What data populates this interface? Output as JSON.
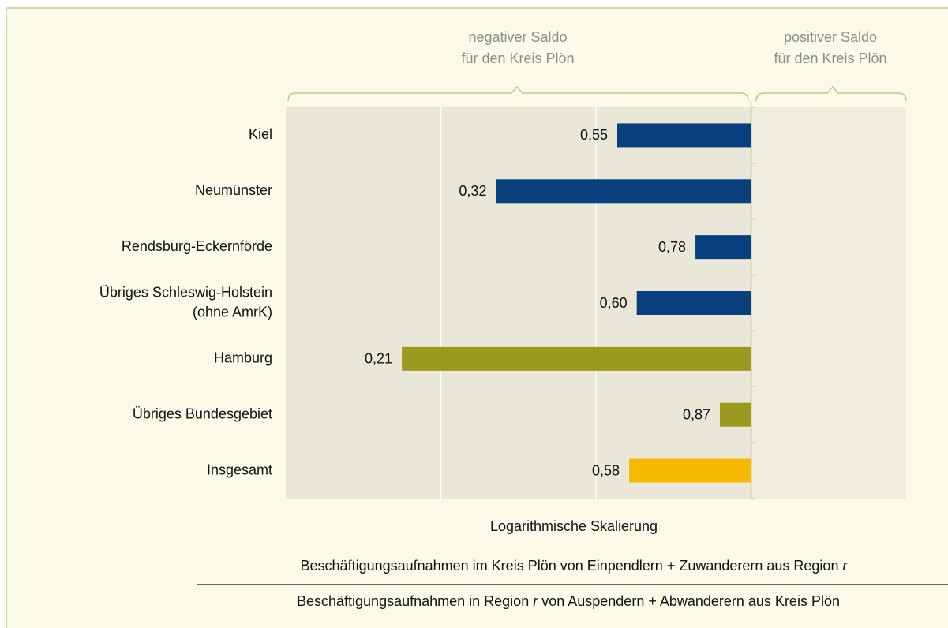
{
  "chart_data": {
    "type": "bar",
    "orientation": "horizontal",
    "log_scale": true,
    "categories": [
      "Kiel",
      "Neumünster",
      "Rendsburg-Eckernförde",
      "Übriges Schleswig-Holstein\n(ohne AmrK)",
      "Hamburg",
      "Übriges Bundesgebiet",
      "Insgesamt"
    ],
    "values": [
      0.55,
      0.32,
      0.78,
      0.6,
      0.21,
      0.87,
      0.58
    ],
    "value_labels": [
      "0,55",
      "0,32",
      "0,78",
      "0,60",
      "0,21",
      "0,87",
      "0,58"
    ],
    "colors": [
      "#0a3f7e",
      "#0a3f7e",
      "#0a3f7e",
      "#0a3f7e",
      "#9a9a1f",
      "#9a9a1f",
      "#f7b800"
    ],
    "xlim": [
      0.125,
      2
    ],
    "xticks": [
      0.25,
      0.5
    ],
    "baseline": 1,
    "grid": true,
    "negative_label": [
      "negativer Saldo",
      "für den Kreis Plön"
    ],
    "positive_label": [
      "positiver Saldo",
      "für den Kreis Plön"
    ],
    "x_label": "Logarithmische Skalierung",
    "numerator": [
      "Beschäftigungsaufnahmen  im Kreis Plön von Einpendlern + Zuwanderern aus Region ",
      "r"
    ],
    "denominator": [
      "Beschäftigungsaufnahmen in Region ",
      "r",
      " von Auspendern + Abwanderern aus Kreis Plön"
    ]
  }
}
